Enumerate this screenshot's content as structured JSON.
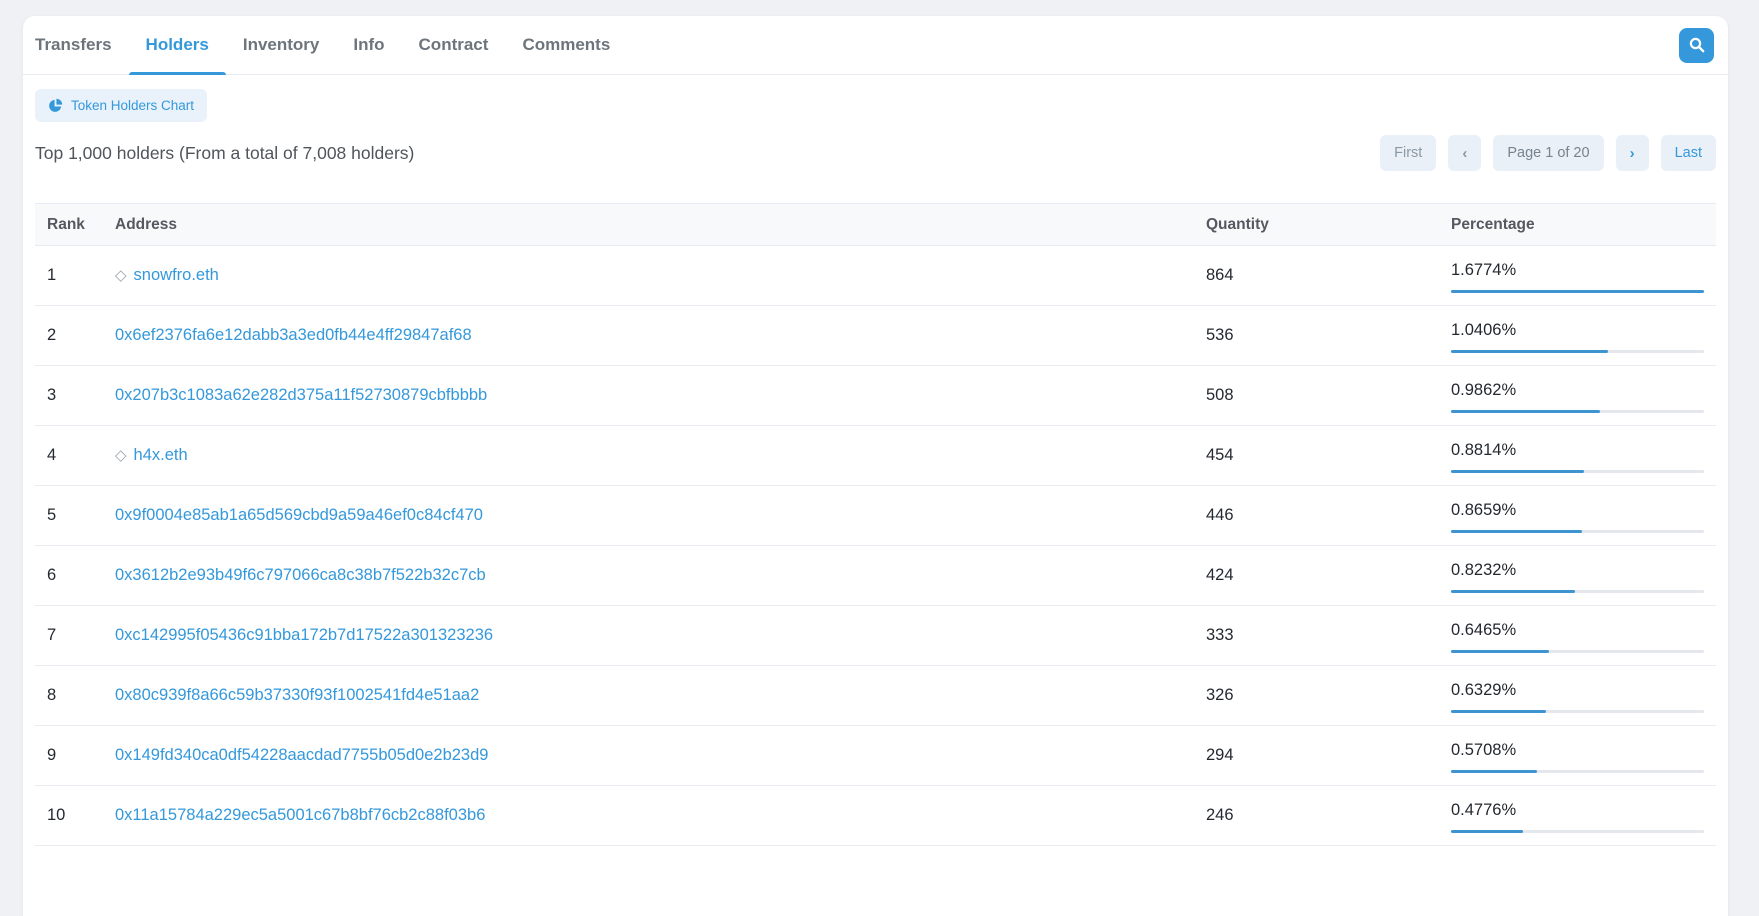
{
  "tabs": {
    "items": [
      {
        "label": "Transfers",
        "active": false
      },
      {
        "label": "Holders",
        "active": true
      },
      {
        "label": "Inventory",
        "active": false
      },
      {
        "label": "Info",
        "active": false
      },
      {
        "label": "Contract",
        "active": false
      },
      {
        "label": "Comments",
        "active": false
      }
    ]
  },
  "toolbar": {
    "chart_button_label": "Token Holders Chart",
    "search_icon": "magnifier",
    "pie_icon": "pie-chart"
  },
  "summary": {
    "text": "Top 1,000 holders (From a total of 7,008 holders)"
  },
  "pagination": {
    "first_label": "First",
    "prev_icon": "‹",
    "page_indicator": "Page 1 of 20",
    "next_icon": "›",
    "last_label": "Last"
  },
  "table": {
    "columns": {
      "rank": "Rank",
      "address": "Address",
      "quantity": "Quantity",
      "percentage": "Percentage"
    },
    "max_percentage": 1.6774,
    "rows": [
      {
        "rank": "1",
        "address": "snowfro.eth",
        "is_ens": true,
        "quantity": "864",
        "percentage": 1.6774,
        "percentage_display": "1.6774%"
      },
      {
        "rank": "2",
        "address": "0x6ef2376fa6e12dabb3a3ed0fb44e4ff29847af68",
        "is_ens": false,
        "quantity": "536",
        "percentage": 1.0406,
        "percentage_display": "1.0406%"
      },
      {
        "rank": "3",
        "address": "0x207b3c1083a62e282d375a11f52730879cbfbbbb",
        "is_ens": false,
        "quantity": "508",
        "percentage": 0.9862,
        "percentage_display": "0.9862%"
      },
      {
        "rank": "4",
        "address": "h4x.eth",
        "is_ens": true,
        "quantity": "454",
        "percentage": 0.8814,
        "percentage_display": "0.8814%"
      },
      {
        "rank": "5",
        "address": "0x9f0004e85ab1a65d569cbd9a59a46ef0c84cf470",
        "is_ens": false,
        "quantity": "446",
        "percentage": 0.8659,
        "percentage_display": "0.8659%"
      },
      {
        "rank": "6",
        "address": "0x3612b2e93b49f6c797066ca8c38b7f522b32c7cb",
        "is_ens": false,
        "quantity": "424",
        "percentage": 0.8232,
        "percentage_display": "0.8232%"
      },
      {
        "rank": "7",
        "address": "0xc142995f05436c91bba172b7d17522a301323236",
        "is_ens": false,
        "quantity": "333",
        "percentage": 0.6465,
        "percentage_display": "0.6465%"
      },
      {
        "rank": "8",
        "address": "0x80c939f8a66c59b37330f93f1002541fd4e51aa2",
        "is_ens": false,
        "quantity": "326",
        "percentage": 0.6329,
        "percentage_display": "0.6329%"
      },
      {
        "rank": "9",
        "address": "0x149fd340ca0df54228aacdad7755b05d0e2b23d9",
        "is_ens": false,
        "quantity": "294",
        "percentage": 0.5708,
        "percentage_display": "0.5708%"
      },
      {
        "rank": "10",
        "address": "0x11a15784a229ec5a5001c67b8bf76cb2c88f03b6",
        "is_ens": false,
        "quantity": "246",
        "percentage": 0.4776,
        "percentage_display": "0.4776%"
      }
    ]
  },
  "colors": {
    "accent": "#3498db",
    "bar_fill": "#3e94d1",
    "bar_track": "#e4e7eb",
    "link": "#3498db"
  }
}
